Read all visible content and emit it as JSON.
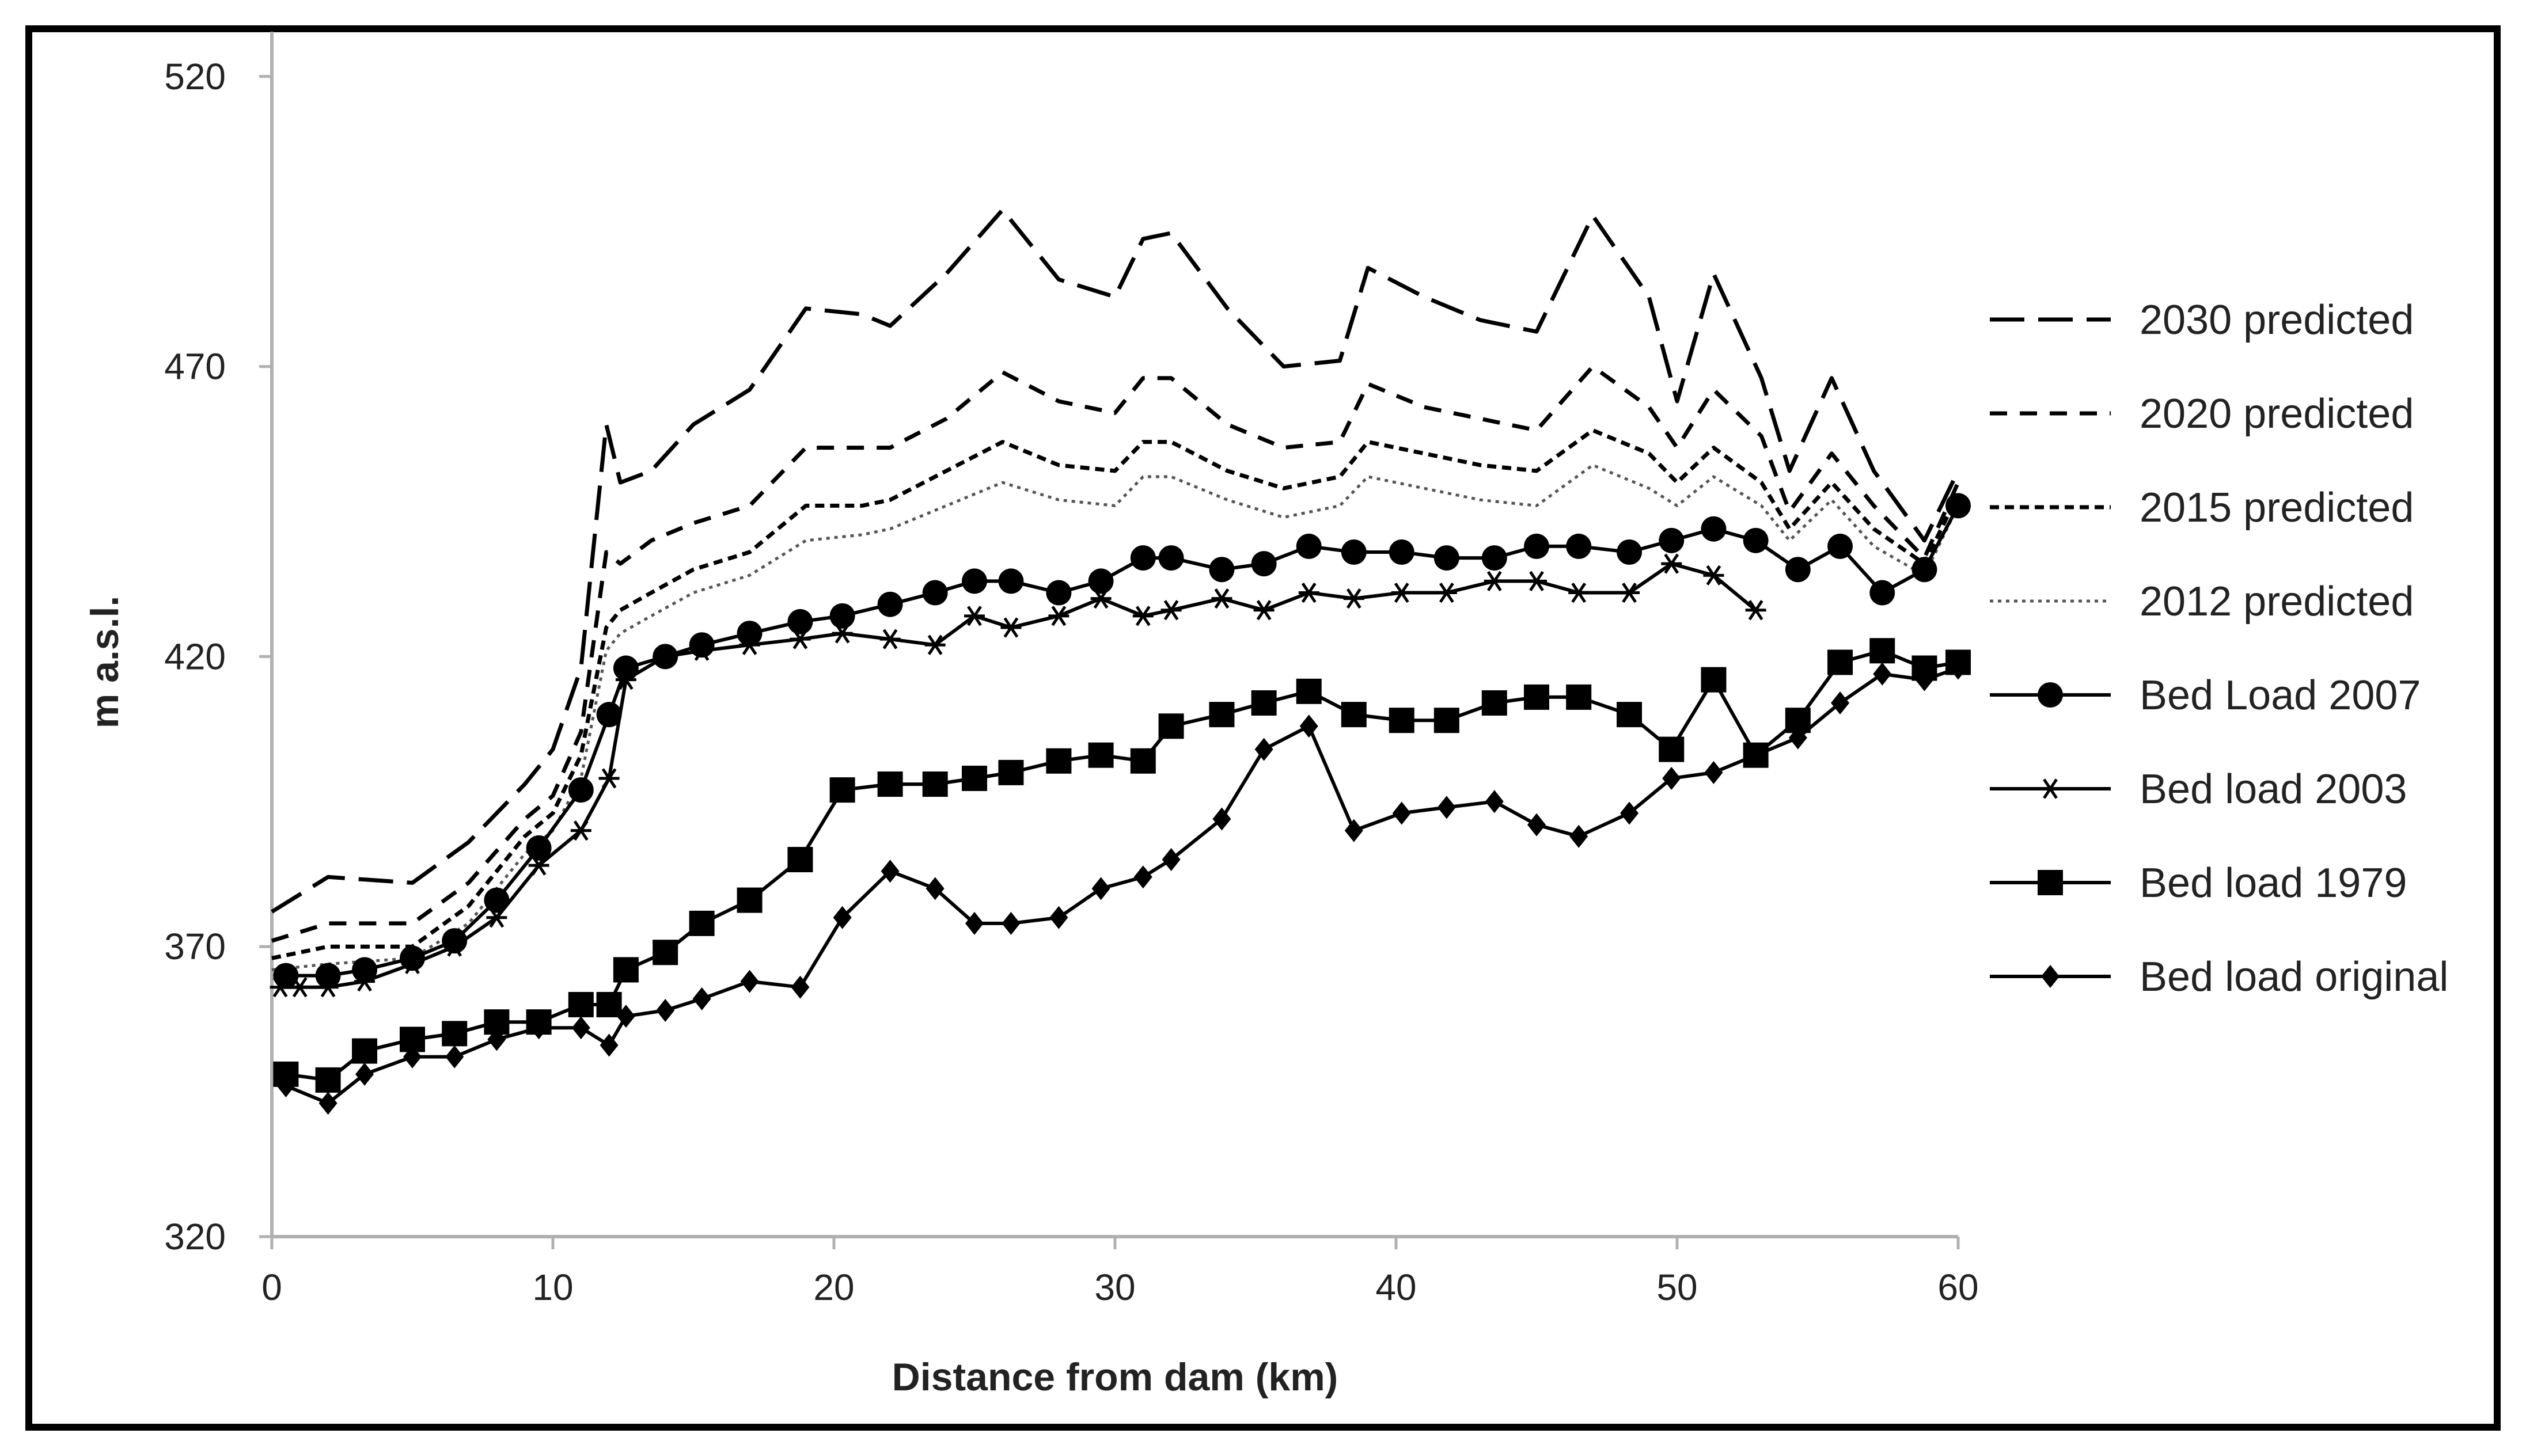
{
  "chart_data": {
    "type": "line",
    "title": "",
    "xlabel": "Distance from dam (km)",
    "ylabel": "m a.s.l.",
    "xlim": [
      0,
      60
    ],
    "ylim": [
      320,
      530
    ],
    "x_ticks": [
      "0",
      "10",
      "20",
      "30",
      "40",
      "50",
      "60"
    ],
    "y_ticks": [
      "320",
      "370",
      "420",
      "470",
      "520"
    ],
    "grid": false,
    "legend_position": "right",
    "series": [
      {
        "name": "2030 predicted",
        "style": "long-dash",
        "marker": "none",
        "x": [
          0,
          2,
          5,
          7,
          9,
          10,
          11,
          11.9,
          12.4,
          13.5,
          15,
          17,
          19,
          21,
          22,
          24,
          26,
          28,
          30,
          31,
          32,
          34,
          36,
          38,
          39,
          41,
          43,
          45,
          47,
          49,
          50,
          51.3,
          53,
          54,
          55.5,
          57,
          58.8,
          60
        ],
        "y": [
          376,
          382,
          381,
          388,
          398,
          404,
          418,
          460,
          450,
          452,
          460,
          466,
          480,
          479,
          477,
          486,
          497,
          485,
          482,
          492,
          493,
          480,
          470,
          471,
          487,
          482,
          478,
          476,
          496,
          482,
          464,
          486,
          468,
          452,
          468,
          452,
          440,
          452
        ]
      },
      {
        "name": "2020 predicted",
        "style": "dash",
        "marker": "none",
        "x": [
          0,
          2,
          5,
          7,
          9,
          10,
          11,
          11.9,
          12.4,
          13.5,
          15,
          17,
          19,
          21,
          22,
          24,
          26,
          28,
          30,
          31,
          32,
          34,
          36,
          38,
          39,
          41,
          43,
          45,
          47,
          49,
          50,
          51.3,
          53,
          54,
          55.5,
          57,
          58.8,
          60
        ],
        "y": [
          371,
          374,
          374,
          381,
          392,
          396,
          407,
          438,
          436,
          440,
          443,
          446,
          456,
          456,
          456,
          461,
          469,
          464,
          462,
          468,
          468,
          460,
          456,
          457,
          467,
          463,
          461,
          459,
          470,
          463,
          456,
          466,
          458,
          445,
          455,
          446,
          437,
          450
        ]
      },
      {
        "name": "2015 predicted",
        "style": "short-dash",
        "marker": "none",
        "x": [
          0,
          2,
          5,
          7,
          9,
          10,
          11,
          11.9,
          12.4,
          13.5,
          15,
          17,
          19,
          21,
          22,
          24,
          26,
          28,
          30,
          31,
          32,
          34,
          36,
          38,
          39,
          41,
          43,
          45,
          47,
          49,
          50,
          51.3,
          53,
          54,
          55.5,
          57,
          58.8,
          60
        ],
        "y": [
          368,
          370,
          370,
          377,
          389,
          393,
          403,
          425,
          428,
          431,
          435,
          438,
          446,
          446,
          447,
          452,
          457,
          453,
          452,
          457,
          457,
          452,
          449,
          451,
          457,
          455,
          453,
          452,
          459,
          455,
          450,
          456,
          450,
          442,
          450,
          442,
          436,
          448
        ]
      },
      {
        "name": "2012 predicted",
        "style": "dot",
        "marker": "none",
        "x": [
          0,
          2,
          5,
          7,
          9,
          10,
          11,
          11.9,
          12.4,
          13.5,
          15,
          17,
          19,
          21,
          22,
          24,
          26,
          28,
          30,
          31,
          32,
          34,
          36,
          38,
          39,
          41,
          43,
          45,
          47,
          49,
          50,
          51.3,
          53,
          54,
          55.5,
          57,
          58.8,
          60
        ],
        "y": [
          366,
          367,
          368,
          374,
          386,
          390,
          399,
          421,
          424,
          427,
          431,
          434,
          440,
          441,
          442,
          446,
          450,
          447,
          446,
          451,
          451,
          447,
          444,
          446,
          451,
          449,
          447,
          446,
          453,
          449,
          446,
          451,
          446,
          440,
          447,
          439,
          434,
          446
        ]
      },
      {
        "name": "Bed Load 2007",
        "style": "solid",
        "marker": "circle",
        "x": [
          0.5,
          2,
          3.3,
          5,
          6.5,
          8,
          9.5,
          11,
          12,
          12.6,
          14,
          15.3,
          17,
          18.8,
          20.3,
          22,
          23.6,
          25,
          26.3,
          28,
          29.5,
          31,
          32,
          33.8,
          35.3,
          36.9,
          38.5,
          40.2,
          41.8,
          43.5,
          45,
          46.5,
          48.3,
          49.8,
          51.3,
          52.8,
          54.3,
          55.8,
          57.3,
          58.8,
          60
        ],
        "y": [
          365,
          365,
          366,
          368,
          371,
          378,
          387,
          397,
          410,
          418,
          420,
          422,
          424,
          426,
          427,
          429,
          431,
          433,
          433,
          431,
          433,
          437,
          437,
          435,
          436,
          439,
          438,
          438,
          437,
          437,
          439,
          439,
          438,
          440,
          442,
          440,
          435,
          439,
          431,
          435,
          446
        ]
      },
      {
        "name": "Bed load 2003",
        "style": "solid",
        "marker": "asterisk",
        "x": [
          0.3,
          1,
          2,
          3.3,
          5,
          6.5,
          8,
          9.5,
          11,
          12,
          12.6,
          14,
          15.3,
          17,
          18.8,
          20.3,
          22,
          23.6,
          25,
          26.3,
          28,
          29.5,
          31,
          32,
          33.8,
          35.3,
          36.9,
          38.5,
          40.2,
          41.8,
          43.5,
          45,
          46.5,
          48.3,
          49.8,
          51.3,
          52.8
        ],
        "y": [
          363,
          363,
          363,
          364,
          367,
          370,
          375,
          384,
          390,
          399,
          416,
          420,
          421,
          422,
          423,
          424,
          423,
          422,
          427,
          425,
          427,
          430,
          427,
          428,
          430,
          428,
          431,
          430,
          431,
          431,
          433,
          433,
          431,
          431,
          436,
          434,
          428
        ]
      },
      {
        "name": "Bed load 1979",
        "style": "solid",
        "marker": "square",
        "x": [
          0.5,
          2,
          3.3,
          5,
          6.5,
          8,
          9.5,
          11,
          12,
          12.6,
          14,
          15.3,
          17,
          18.8,
          20.3,
          22,
          23.6,
          25,
          26.3,
          28,
          29.5,
          31,
          32,
          33.8,
          35.3,
          36.9,
          38.5,
          40.2,
          41.8,
          43.5,
          45,
          46.5,
          48.3,
          49.8,
          51.3,
          52.8,
          54.3,
          55.8,
          57.3,
          58.8,
          60
        ],
        "y": [
          348,
          347,
          352,
          354,
          355,
          357,
          357,
          360,
          360,
          366,
          369,
          374,
          378,
          385,
          397,
          398,
          398,
          399,
          400,
          402,
          403,
          402,
          408,
          410,
          412,
          414,
          410,
          409,
          409,
          412,
          413,
          413,
          410,
          404,
          416,
          403,
          409,
          419,
          421,
          418,
          419
        ]
      },
      {
        "name": "Bed load original",
        "style": "solid",
        "marker": "diamond",
        "x": [
          0.5,
          2,
          3.3,
          5,
          6.5,
          8,
          9.5,
          11,
          12,
          12.6,
          14,
          15.3,
          17,
          18.8,
          20.3,
          22,
          23.6,
          25,
          26.3,
          28,
          29.5,
          31,
          32,
          33.8,
          35.3,
          36.9,
          38.5,
          40.2,
          41.8,
          43.5,
          45,
          46.5,
          48.3,
          49.8,
          51.3,
          52.8,
          54.3,
          55.8,
          57.3,
          58.8,
          60
        ],
        "y": [
          346,
          343,
          348,
          351,
          351,
          354,
          356,
          356,
          353,
          358,
          359,
          361,
          364,
          363,
          375,
          383,
          380,
          374,
          374,
          375,
          380,
          382,
          385,
          392,
          404,
          408,
          390,
          393,
          394,
          395,
          391,
          389,
          393,
          399,
          400,
          403,
          406,
          412,
          417,
          416,
          418
        ]
      }
    ]
  }
}
